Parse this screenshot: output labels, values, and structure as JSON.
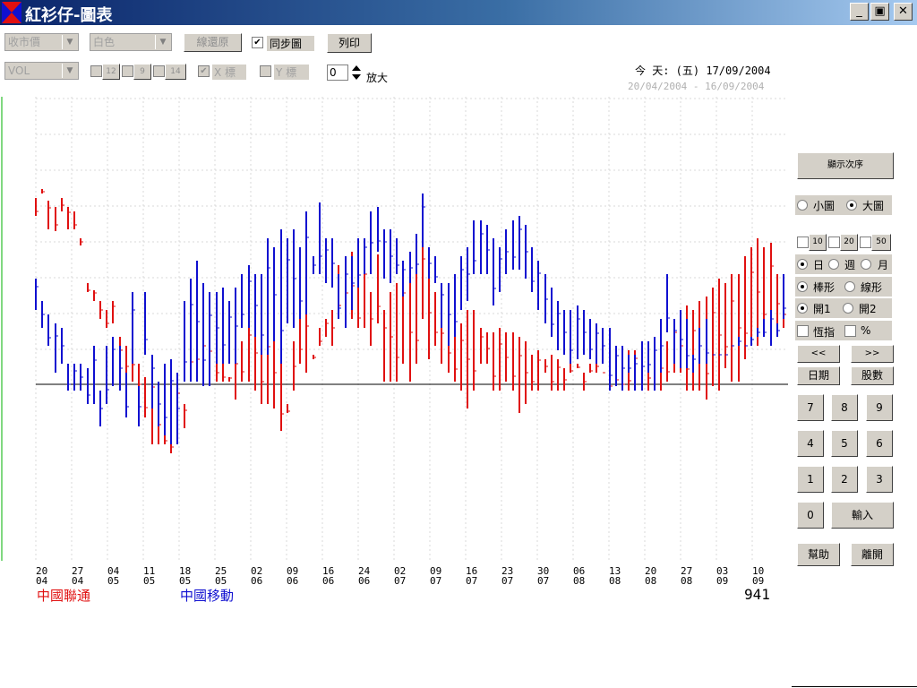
{
  "window": {
    "title": "紅衫仔-圖表",
    "controls": {
      "minimize": "_",
      "maximize": "▣",
      "close": "✕"
    }
  },
  "toolbar": {
    "price_select": "收市價",
    "color_select": "白色",
    "restore_button": "線還原",
    "sync_label": "同步圖",
    "sync_checked": true,
    "print_button": "列印",
    "indicator_select": "VOL",
    "ma_values": [
      "12",
      "9",
      "14"
    ],
    "x_label": "X 標",
    "x_checked": true,
    "y_label": "Y 標",
    "zoom_value": "0",
    "zoom_label": "放大"
  },
  "dates": {
    "today": "今 天: (五) 17/09/2004",
    "range": "20/04/2004 - 16/09/2004"
  },
  "panel": {
    "order_button": "顯示次序",
    "size_options": [
      {
        "label": "小圖",
        "selected": false
      },
      {
        "label": "大圖",
        "selected": true
      }
    ],
    "ma_periods": [
      "10",
      "20",
      "50"
    ],
    "period_options": [
      {
        "label": "日",
        "selected": true
      },
      {
        "label": "週",
        "selected": false
      },
      {
        "label": "月",
        "selected": false
      }
    ],
    "style_options": [
      {
        "label": "棒形",
        "selected": true
      },
      {
        "label": "線形",
        "selected": false
      }
    ],
    "open_options": [
      {
        "label": "開1",
        "selected": true
      },
      {
        "label": "開2",
        "selected": false
      }
    ],
    "index_label": "恆指",
    "percent_label": "%",
    "prev_button": "<<",
    "next_button": ">>",
    "date_button": "日期",
    "stock_button": "股數",
    "keypad": [
      "7",
      "8",
      "9",
      "4",
      "5",
      "6",
      "1",
      "2",
      "3"
    ],
    "zero_button": "0",
    "enter_button": "輸入",
    "help_button": "幫助",
    "exit_button": "離開"
  },
  "legend": {
    "series1": "中國聯通",
    "series2": "中國移動",
    "code": "941"
  },
  "colors": {
    "series1": "#e01010",
    "series2": "#1010d0",
    "grid": "#d8d8d8",
    "axis": "#00b000",
    "baseline": "#000000"
  },
  "chart_data": {
    "type": "ohlc",
    "x_tick_labels": [
      [
        "20",
        "04"
      ],
      [
        "27",
        "04"
      ],
      [
        "04",
        "05"
      ],
      [
        "11",
        "05"
      ],
      [
        "18",
        "05"
      ],
      [
        "25",
        "05"
      ],
      [
        "02",
        "06"
      ],
      [
        "09",
        "06"
      ],
      [
        "16",
        "06"
      ],
      [
        "24",
        "06"
      ],
      [
        "02",
        "07"
      ],
      [
        "09",
        "07"
      ],
      [
        "16",
        "07"
      ],
      [
        "23",
        "07"
      ],
      [
        "30",
        "07"
      ],
      [
        "06",
        "08"
      ],
      [
        "13",
        "08"
      ],
      [
        "20",
        "08"
      ],
      [
        "27",
        "08"
      ],
      [
        "03",
        "09"
      ],
      [
        "10",
        "09"
      ]
    ],
    "series": [
      {
        "name": "中國聯通",
        "highs": [
          135,
          110,
          150,
          152,
          115,
          150,
          150,
          168,
          210,
          218,
          230,
          240,
          230,
          270,
          280,
          295,
          300,
          315,
          305,
          345,
          372,
          390,
          355,
          372,
          290,
          280,
          278,
          285,
          300,
          300,
          315,
          260,
          275,
          250,
          245,
          245,
          260,
          270,
          300,
          355,
          275,
          235,
          240,
          290,
          260,
          250,
          240,
          190,
          215,
          175,
          215,
          180,
          220,
          178,
          240,
          220,
          210,
          195,
          210,
          195,
          160,
          190,
          220,
          255,
          265,
          265,
          255,
          240,
          240,
          260,
          265,
          265,
          260,
          265,
          265,
          270,
          275,
          290,
          285,
          295,
          290,
          295,
          305,
          300,
          305,
          310,
          300,
          300,
          310,
          310,
          320,
          315,
          285,
          285,
          275,
          275,
          270,
          280,
          275,
          250,
          250,
          235,
          240,
          230,
          225,
          215,
          205,
          210,
          200,
          200,
          180,
          170,
          160,
          170,
          165,
          200,
          200
        ],
        "lows": [
          115,
          105,
          118,
          125,
          130,
          125,
          130,
          160,
          220,
          230,
          250,
          260,
          255,
          300,
          310,
          320,
          345,
          360,
          390,
          390,
          390,
          400,
          310,
          345,
          320,
          310,
          280,
          290,
          320,
          320,
          320,
          340,
          320,
          320,
          330,
          345,
          345,
          350,
          375,
          345,
          330,
          300,
          310,
          295,
          280,
          270,
          280,
          250,
          240,
          250,
          260,
          260,
          280,
          255,
          320,
          320,
          320,
          300,
          320,
          300,
          250,
          295,
          280,
          300,
          310,
          320,
          330,
          350,
          330,
          300,
          300,
          330,
          330,
          320,
          330,
          355,
          345,
          330,
          330,
          310,
          330,
          330,
          330,
          310,
          300,
          330,
          310,
          310,
          310,
          330,
          310,
          330,
          330,
          320,
          330,
          330,
          330,
          330,
          320,
          310,
          310,
          330,
          330,
          330,
          340,
          325,
          330,
          305,
          320,
          320,
          295,
          280,
          280,
          270,
          270,
          265,
          260
        ]
      },
      {
        "name": "中國移動",
        "highs": [
          205,
          230,
          245,
          255,
          260,
          300,
          300,
          300,
          305,
          280,
          330,
          280,
          270,
          280,
          310,
          220,
          325,
          220,
          290,
          320,
          300,
          295,
          310,
          230,
          205,
          185,
          210,
          220,
          220,
          215,
          230,
          215,
          200,
          190,
          200,
          200,
          160,
          170,
          150,
          160,
          150,
          170,
          130,
          180,
          120,
          160,
          160,
          200,
          180,
          180,
          160,
          160,
          130,
          125,
          150,
          150,
          160,
          185,
          175,
          155,
          110,
          170,
          180,
          210,
          210,
          200,
          180,
          170,
          140,
          140,
          145,
          160,
          170,
          150,
          140,
          135,
          145,
          170,
          185,
          200,
          215,
          230,
          240,
          240,
          235,
          240,
          250,
          255,
          260,
          260,
          280,
          280,
          290,
          290,
          275,
          275,
          270,
          250,
          200,
          250,
          240,
          250,
          290,
          260,
          250,
          290,
          290,
          290,
          280,
          270,
          280,
          270,
          260,
          250,
          240,
          255,
          200
        ],
        "lows": [
          240,
          260,
          280,
          310,
          300,
          330,
          330,
          330,
          345,
          345,
          370,
          345,
          325,
          330,
          360,
          300,
          370,
          290,
          350,
          370,
          380,
          390,
          390,
          320,
          320,
          320,
          325,
          325,
          300,
          300,
          300,
          300,
          260,
          260,
          270,
          290,
          290,
          275,
          300,
          255,
          260,
          250,
          245,
          200,
          200,
          210,
          215,
          250,
          260,
          240,
          215,
          200,
          200,
          175,
          205,
          210,
          200,
          225,
          210,
          200,
          170,
          205,
          210,
          260,
          280,
          270,
          240,
          230,
          200,
          200,
          200,
          235,
          220,
          200,
          195,
          195,
          205,
          220,
          240,
          255,
          270,
          285,
          290,
          300,
          295,
          290,
          295,
          300,
          300,
          330,
          325,
          330,
          310,
          330,
          330,
          310,
          330,
          310,
          265,
          300,
          305,
          305,
          310,
          300,
          300,
          290,
          290,
          290,
          280,
          280,
          280,
          280,
          270,
          270,
          280,
          270,
          250
        ]
      }
    ]
  }
}
